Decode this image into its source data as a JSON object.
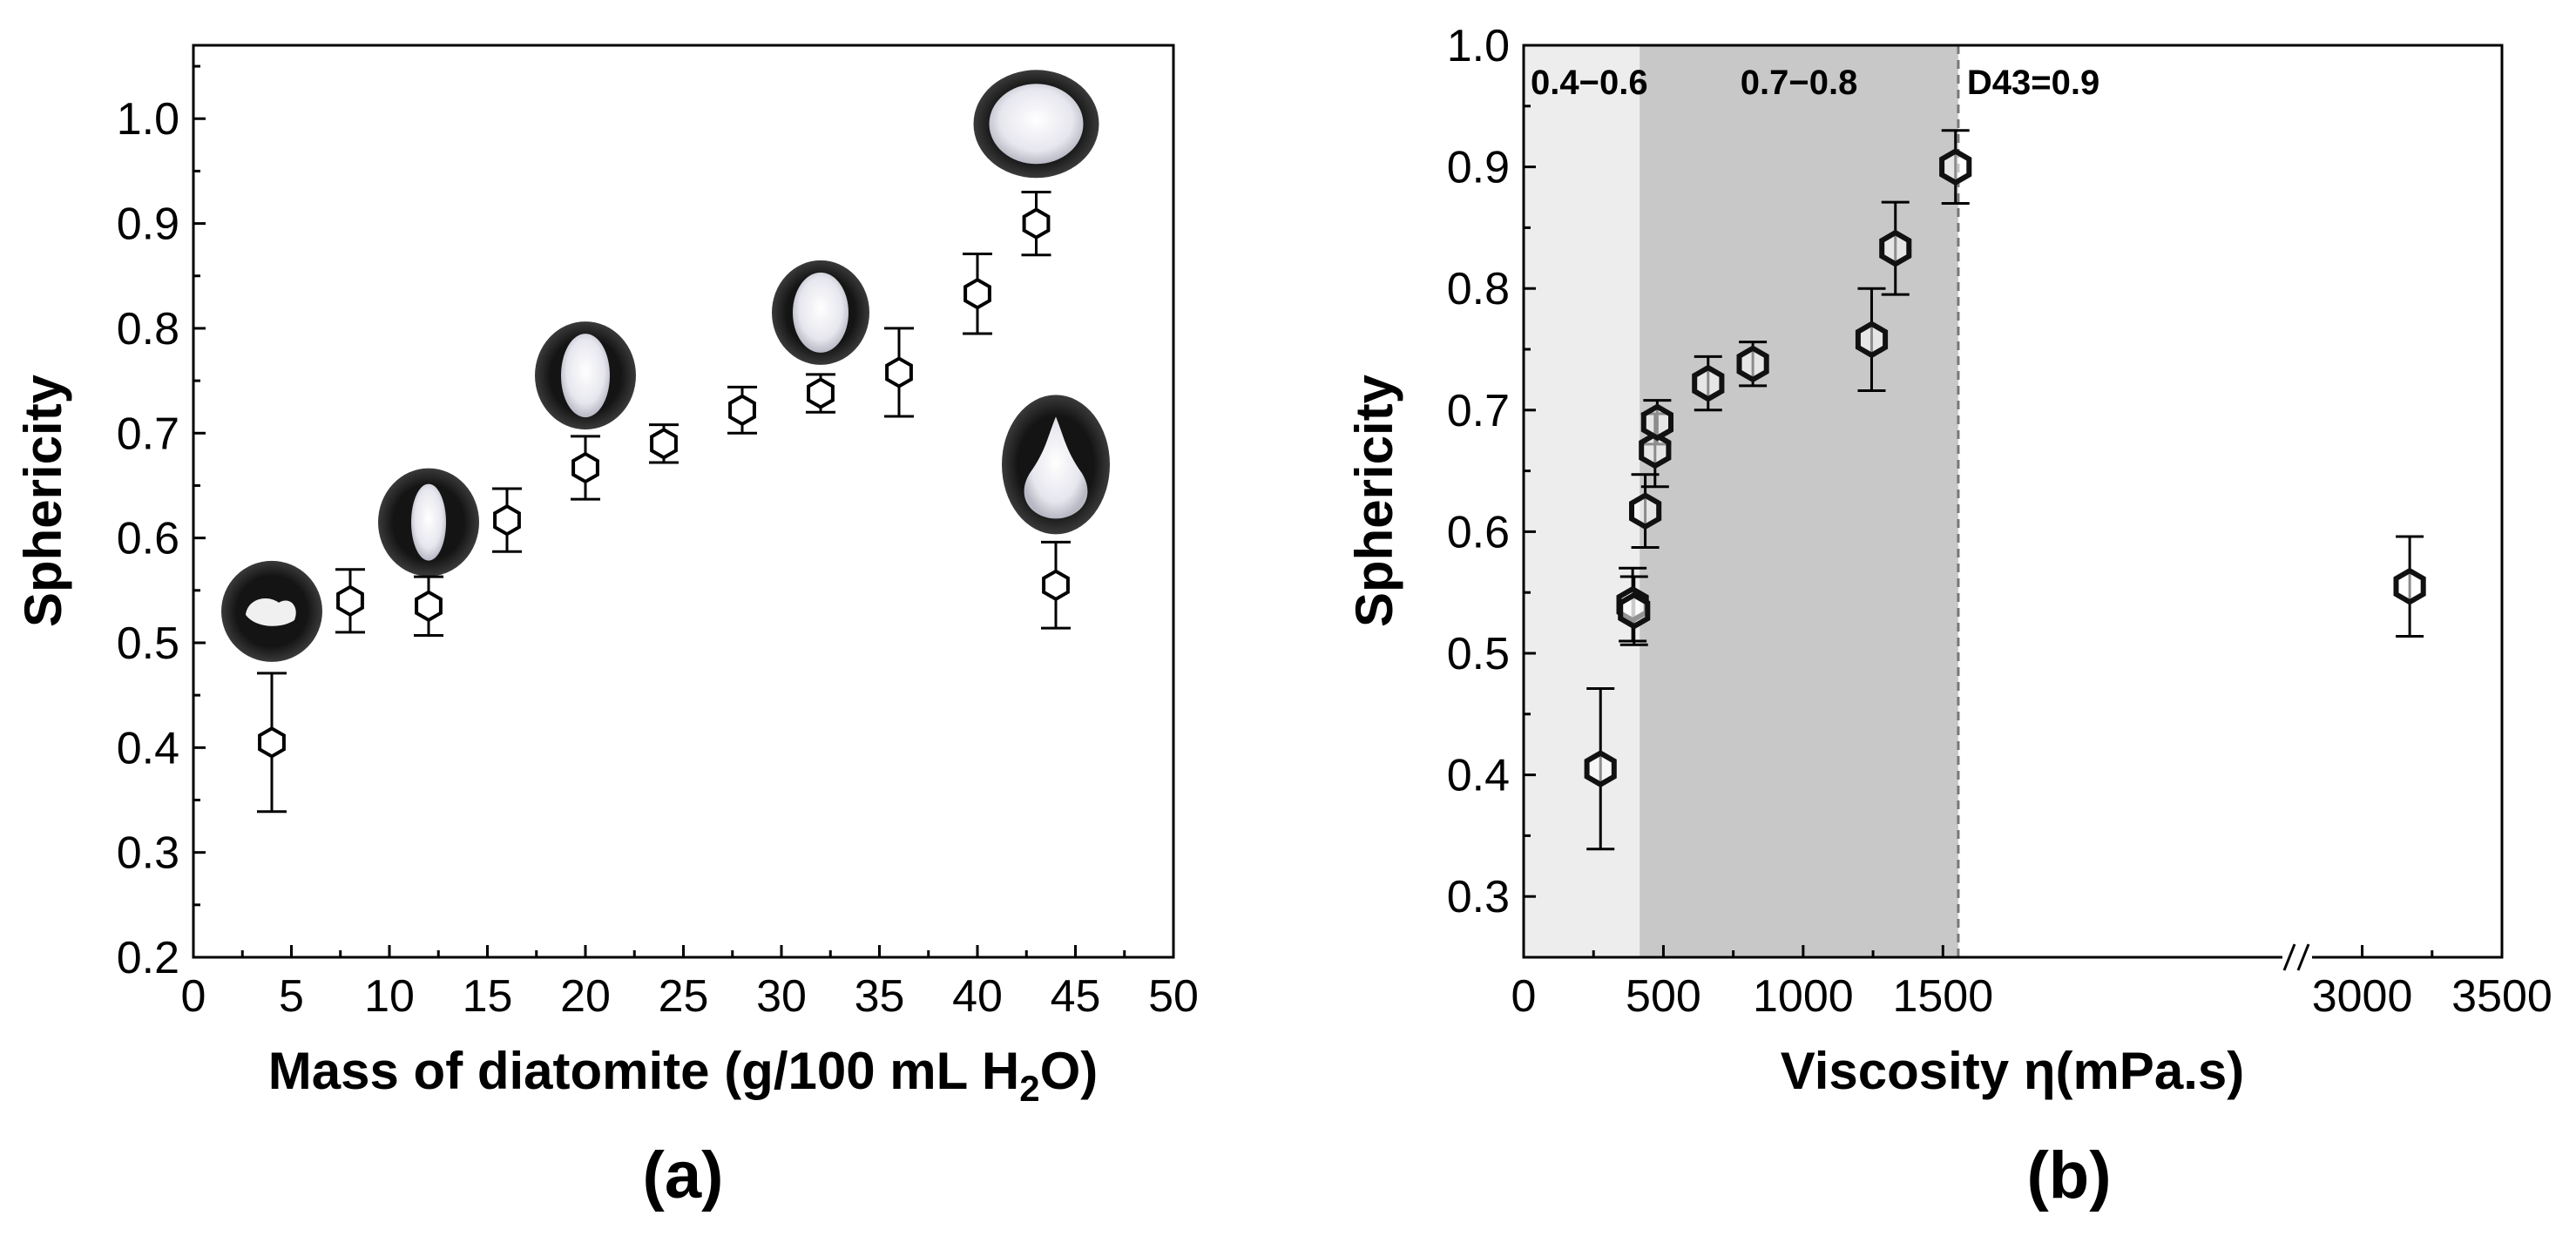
{
  "chart_data": [
    {
      "panel_label": "(a)",
      "type": "scatter",
      "xlabel": "Mass of diatomite (g/100 mL H",
      "xlabel_sub": "2",
      "xlabel_end": "O)",
      "ylabel": "Sphericity",
      "xlim": [
        0,
        50
      ],
      "ylim": [
        0.2,
        1.07
      ],
      "xticks": [
        0,
        5,
        10,
        15,
        20,
        25,
        30,
        35,
        40,
        45,
        50
      ],
      "xtick_labels": [
        "0",
        "5",
        "10",
        "15",
        "20",
        "25",
        "30",
        "35",
        "40",
        "45",
        "50"
      ],
      "yticks": [
        0.2,
        0.3,
        0.4,
        0.5,
        0.6,
        0.7,
        0.8,
        0.9,
        1.0
      ],
      "ytick_labels": [
        "0.2",
        "0.3",
        "0.4",
        "0.5",
        "0.6",
        "0.7",
        "0.8",
        "0.9",
        "1.0"
      ],
      "marker": "hexagon",
      "points": [
        {
          "x": 4,
          "y": 0.405,
          "err": 0.066
        },
        {
          "x": 8,
          "y": 0.54,
          "err": 0.03
        },
        {
          "x": 12,
          "y": 0.535,
          "err": 0.028
        },
        {
          "x": 16,
          "y": 0.617,
          "err": 0.03
        },
        {
          "x": 20,
          "y": 0.667,
          "err": 0.03
        },
        {
          "x": 24,
          "y": 0.69,
          "err": 0.018
        },
        {
          "x": 28,
          "y": 0.722,
          "err": 0.022
        },
        {
          "x": 32,
          "y": 0.738,
          "err": 0.018
        },
        {
          "x": 36,
          "y": 0.758,
          "err": 0.042
        },
        {
          "x": 40,
          "y": 0.833,
          "err": 0.038
        },
        {
          "x": 43,
          "y": 0.9,
          "err": 0.03
        },
        {
          "x": 44,
          "y": 0.555,
          "err": 0.041
        }
      ],
      "droplet_images": [
        {
          "x": 4,
          "y": 0.53,
          "shape": "irregular"
        },
        {
          "x": 12,
          "y": 0.615,
          "shape": "elongated"
        },
        {
          "x": 20,
          "y": 0.755,
          "shape": "oval"
        },
        {
          "x": 32,
          "y": 0.815,
          "shape": "near-round"
        },
        {
          "x": 43,
          "y": 0.995,
          "shape": "round"
        },
        {
          "x": 44,
          "y": 0.67,
          "shape": "tailed"
        }
      ]
    },
    {
      "panel_label": "(b)",
      "type": "scatter",
      "xlabel": "Viscosity η(mPa.s)",
      "ylabel": "Sphericity",
      "xlim": [
        0,
        3500
      ],
      "ylim": [
        0.25,
        1.0
      ],
      "axis_break": "between 1800 and 3000 (drawn at break mark)",
      "xticks": [
        0,
        500,
        1000,
        1500,
        3000,
        3500
      ],
      "xtick_labels": [
        "0",
        "500",
        "1000",
        "1500",
        "3000",
        "3500"
      ],
      "yticks": [
        0.3,
        0.4,
        0.5,
        0.6,
        0.7,
        0.8,
        0.9,
        1.0
      ],
      "ytick_labels": [
        "0.3",
        "0.4",
        "0.5",
        "0.6",
        "0.7",
        "0.8",
        "0.9",
        "1.0"
      ],
      "marker": "hexagon",
      "regions": [
        {
          "label": "0.4−0.6",
          "x_from": 0,
          "x_to": 415,
          "color": "#ededed"
        },
        {
          "label": "0.7−0.8",
          "x_from": 415,
          "x_to": 1555,
          "color": "#c8c8c8"
        },
        {
          "label": "D43=0.9",
          "x_from": 1555,
          "x_to": 3500,
          "color": "#ffffff"
        }
      ],
      "dashed_line_x": 1555,
      "points": [
        {
          "x": 275,
          "y": 0.405,
          "err": 0.066
        },
        {
          "x": 390,
          "y": 0.54,
          "err": 0.03
        },
        {
          "x": 395,
          "y": 0.535,
          "err": 0.028
        },
        {
          "x": 435,
          "y": 0.617,
          "err": 0.03
        },
        {
          "x": 470,
          "y": 0.667,
          "err": 0.03
        },
        {
          "x": 478,
          "y": 0.69,
          "err": 0.018
        },
        {
          "x": 660,
          "y": 0.722,
          "err": 0.022
        },
        {
          "x": 820,
          "y": 0.738,
          "err": 0.018
        },
        {
          "x": 1245,
          "y": 0.758,
          "err": 0.042
        },
        {
          "x": 1330,
          "y": 0.833,
          "err": 0.038
        },
        {
          "x": 1545,
          "y": 0.9,
          "err": 0.03
        },
        {
          "x": 3170,
          "y": 0.555,
          "err": 0.041
        }
      ]
    }
  ]
}
